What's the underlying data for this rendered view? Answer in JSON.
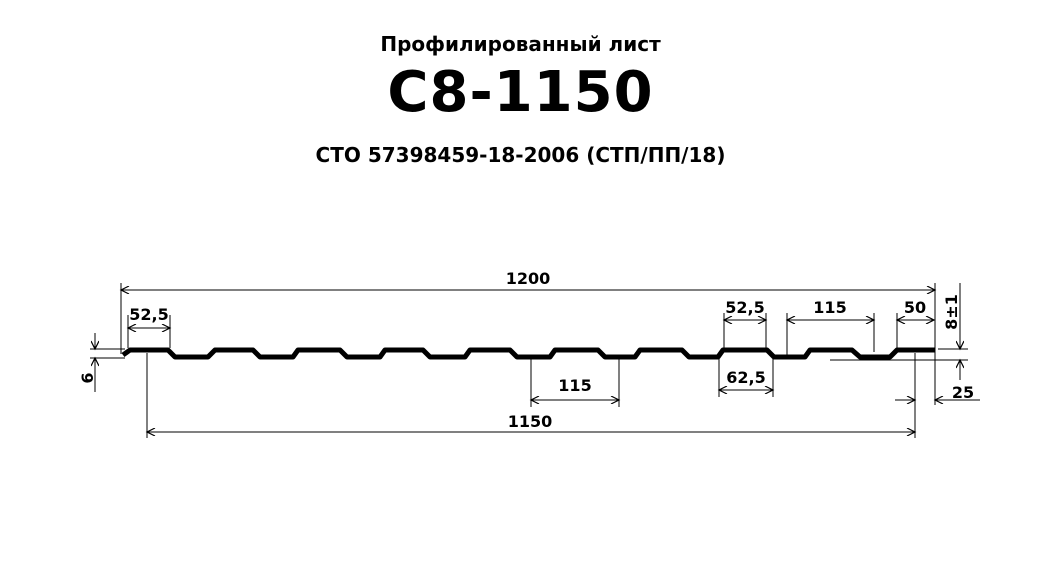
{
  "header": {
    "subtitle": "Профилированный  лист",
    "title": "С8-1150",
    "standard": "СТО  57398459-18-2006  (СТП/ПП/18)"
  },
  "dimensions": {
    "total_width": "1200",
    "useful_width": "1150",
    "left_flat": "52,5",
    "height_left": "6",
    "pitch_bottom": "115",
    "trough_width": "62,5",
    "crest_right": "52,5",
    "pitch_top": "115",
    "end_flat": "50",
    "profile_height": "8±1",
    "overlap": "25"
  },
  "colors": {
    "line": "#000000"
  }
}
